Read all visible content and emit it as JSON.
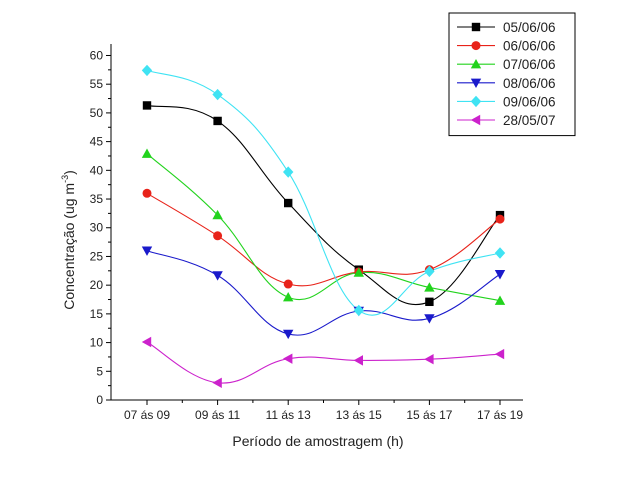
{
  "chart_data": {
    "type": "line",
    "title": "",
    "xlabel": "Período de amostragem (h)",
    "ylabel": "Concentração (ug m",
    "ylabel_sup": "-3",
    "ylabel_close": ")",
    "categories": [
      "07 ás 09",
      "09 ás 11",
      "11 ás 13",
      "13 ás 15",
      "15 ás 17",
      "17 ás 19"
    ],
    "ylim": [
      0,
      62
    ],
    "yticks": [
      0,
      5,
      10,
      15,
      20,
      25,
      30,
      35,
      40,
      45,
      50,
      55,
      60
    ],
    "grid": false,
    "legend_position": "top-right",
    "smooth": true,
    "series": [
      {
        "name": "05/06/06",
        "values": [
          51.3,
          48.6,
          34.3,
          22.7,
          17.1,
          32.2
        ],
        "color": "#000000",
        "marker": "square"
      },
      {
        "name": "06/06/06",
        "values": [
          36.0,
          28.6,
          20.2,
          22.3,
          22.7,
          31.5
        ],
        "color": "#e8231a",
        "marker": "circle"
      },
      {
        "name": "07/06/06",
        "values": [
          42.9,
          32.2,
          17.9,
          22.2,
          19.6,
          17.3
        ],
        "color": "#22d31d",
        "marker": "triangle-up"
      },
      {
        "name": "08/06/06",
        "values": [
          26.0,
          21.7,
          11.5,
          15.5,
          14.2,
          21.9
        ],
        "color": "#1a1acb",
        "marker": "triangle-down"
      },
      {
        "name": "09/06/06",
        "values": [
          57.4,
          53.2,
          39.7,
          15.6,
          22.4,
          25.6
        ],
        "color": "#3fe3f3",
        "marker": "diamond"
      },
      {
        "name": "28/05/07",
        "values": [
          10.1,
          3.0,
          7.2,
          6.9,
          7.1,
          8.0
        ],
        "color": "#cc22cc",
        "marker": "triangle-left"
      }
    ]
  }
}
